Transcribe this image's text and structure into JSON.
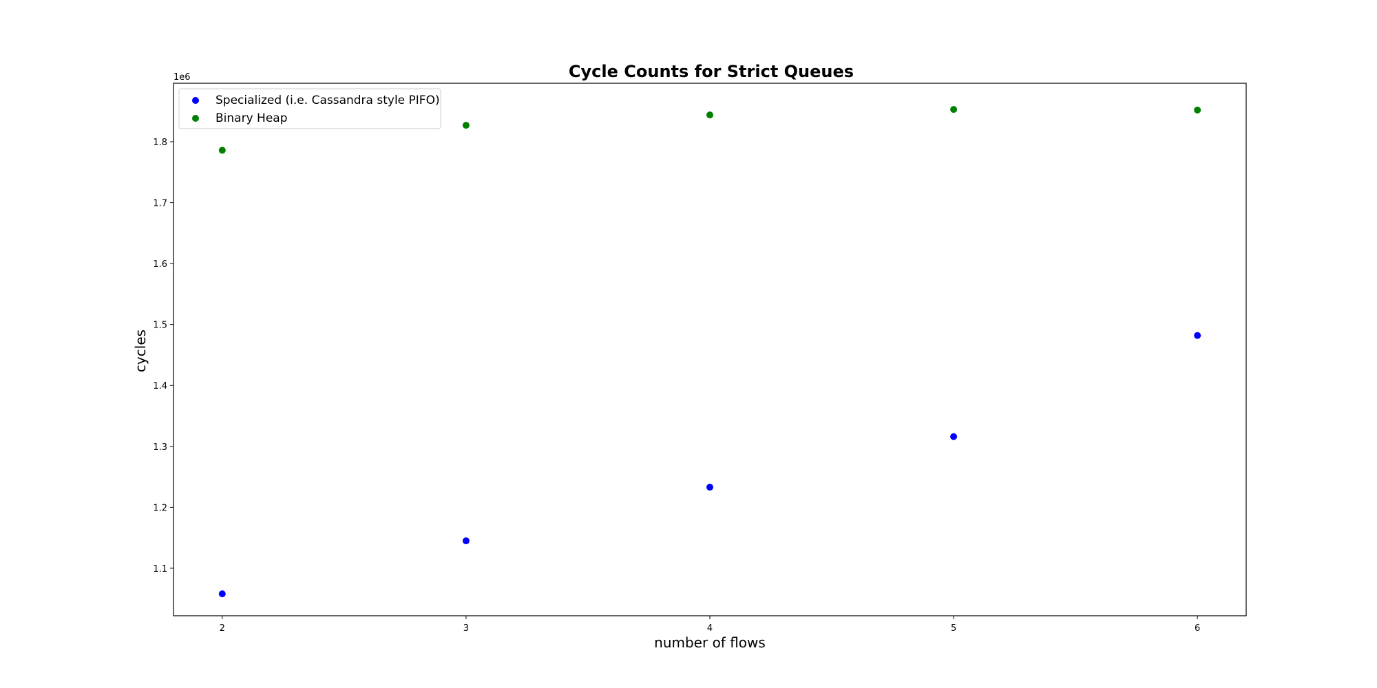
{
  "chart_data": {
    "type": "scatter",
    "title": "Cycle Counts for Strict Queues",
    "xlabel": "number of flows",
    "ylabel": "cycles",
    "y_offset_label": "1e6",
    "xlim": [
      1.8,
      6.2
    ],
    "ylim": [
      1.022,
      1.896
    ],
    "x_ticks": [
      2,
      3,
      4,
      5,
      6
    ],
    "x_tick_labels": [
      "2",
      "3",
      "4",
      "5",
      "6"
    ],
    "y_ticks": [
      1.1,
      1.2,
      1.3,
      1.4,
      1.5,
      1.6,
      1.7,
      1.8
    ],
    "y_tick_labels": [
      "1.1",
      "1.2",
      "1.3",
      "1.4",
      "1.5",
      "1.6",
      "1.7",
      "1.8"
    ],
    "grid": false,
    "legend_position": "upper-left",
    "series": [
      {
        "name": "Specialized (i.e. Cassandra style PIFO)",
        "color": "#0000ff",
        "x": [
          2,
          3,
          4,
          5,
          6
        ],
        "y": [
          1.058,
          1.145,
          1.233,
          1.316,
          1.482
        ]
      },
      {
        "name": "Binary Heap",
        "color": "#008000",
        "x": [
          2,
          3,
          4,
          5,
          6
        ],
        "y": [
          1.786,
          1.827,
          1.844,
          1.853,
          1.852
        ]
      }
    ]
  }
}
